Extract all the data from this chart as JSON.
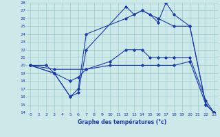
{
  "xlabel": "Graphe des températures (°c)",
  "bg_color": "#cce8e8",
  "line_color": "#1a3aad",
  "grid_color": "#99cccc",
  "xlim": [
    -0.5,
    23.5
  ],
  "ylim": [
    14,
    28
  ],
  "yticks": [
    14,
    15,
    16,
    17,
    18,
    19,
    20,
    21,
    22,
    23,
    24,
    25,
    26,
    27,
    28
  ],
  "xticks": [
    0,
    1,
    2,
    3,
    4,
    5,
    6,
    7,
    8,
    9,
    10,
    11,
    12,
    13,
    14,
    15,
    16,
    17,
    18,
    19,
    20,
    21,
    22,
    23
  ],
  "lines": [
    {
      "x": [
        0,
        2,
        3,
        5,
        6,
        7,
        12,
        13,
        14,
        15,
        16,
        17,
        18,
        20,
        22,
        23
      ],
      "y": [
        20,
        20,
        19,
        16,
        16.5,
        22,
        27.5,
        26.5,
        27,
        26.5,
        25.5,
        28,
        26.5,
        25,
        15,
        14
      ]
    },
    {
      "x": [
        0,
        3,
        5,
        6,
        7,
        12,
        14,
        16,
        18,
        20,
        22,
        23
      ],
      "y": [
        20,
        19,
        16,
        17,
        24,
        26,
        27,
        26,
        25,
        25,
        15,
        14
      ]
    },
    {
      "x": [
        0,
        3,
        5,
        6,
        7,
        10,
        12,
        13,
        14,
        15,
        16,
        17,
        18,
        20,
        22,
        23
      ],
      "y": [
        20,
        19,
        18,
        18.5,
        19.5,
        20.5,
        22,
        22,
        22,
        21,
        21,
        21,
        21,
        21,
        15.5,
        14
      ]
    },
    {
      "x": [
        0,
        3,
        7,
        10,
        14,
        16,
        18,
        20,
        22,
        23
      ],
      "y": [
        20,
        19.5,
        19.5,
        20,
        20,
        20,
        20,
        20.5,
        15,
        14
      ]
    }
  ]
}
